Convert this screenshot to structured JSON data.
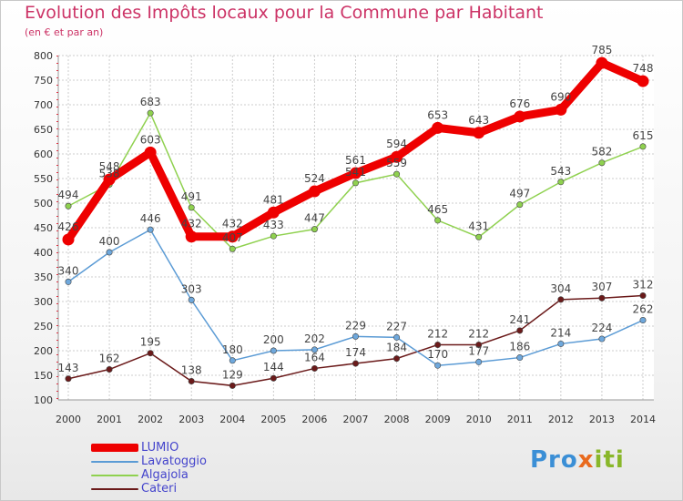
{
  "header": {
    "title": "Evolution des Impôts locaux pour la Commune par Habitant",
    "subtitle": "(en € et par an)"
  },
  "logo": {
    "part1": "Pro",
    "part2": "x",
    "part3": "iti"
  },
  "colors": {
    "title": "#cc3366",
    "legend_text": "#4444cc",
    "lumio": "#ee0000",
    "lavatoggio": "#5b9bd5",
    "algajola": "#8fd14f",
    "cateri": "#6b1a1a"
  },
  "chart_data": {
    "type": "line",
    "title": "",
    "xlabel": "",
    "ylabel": "",
    "ylim": [
      100,
      800
    ],
    "yticks": [
      100,
      150,
      200,
      250,
      300,
      350,
      400,
      450,
      500,
      550,
      600,
      650,
      700,
      750,
      800
    ],
    "grid": true,
    "legend_position": "bottom-left",
    "x": [
      "2000",
      "2001",
      "2002",
      "2003",
      "2004",
      "2005",
      "2006",
      "2007",
      "2008",
      "2009",
      "2010",
      "2011",
      "2012",
      "2013",
      "2014"
    ],
    "series": [
      {
        "name": "LUMIO",
        "values": [
          426,
          548,
          603,
          432,
          432,
          481,
          524,
          561,
          594,
          653,
          643,
          676,
          690,
          785,
          748
        ],
        "color": "#ee0000",
        "thick": true
      },
      {
        "name": "Lavatoggio",
        "values": [
          340,
          400,
          446,
          303,
          180,
          200,
          202,
          229,
          227,
          170,
          177,
          186,
          214,
          224,
          262
        ],
        "color": "#5b9bd5",
        "marker": "#6fa8dc"
      },
      {
        "name": "Algajola",
        "values": [
          494,
          538,
          683,
          491,
          407,
          433,
          447,
          541,
          559,
          465,
          431,
          497,
          543,
          582,
          615
        ],
        "color": "#8fd14f",
        "marker": "#8fd14f"
      },
      {
        "name": "Cateri",
        "values": [
          143,
          162,
          195,
          138,
          129,
          144,
          164,
          174,
          184,
          212,
          212,
          241,
          304,
          307,
          312
        ],
        "color": "#6b1a1a",
        "marker": "#6b1a1a"
      }
    ]
  }
}
